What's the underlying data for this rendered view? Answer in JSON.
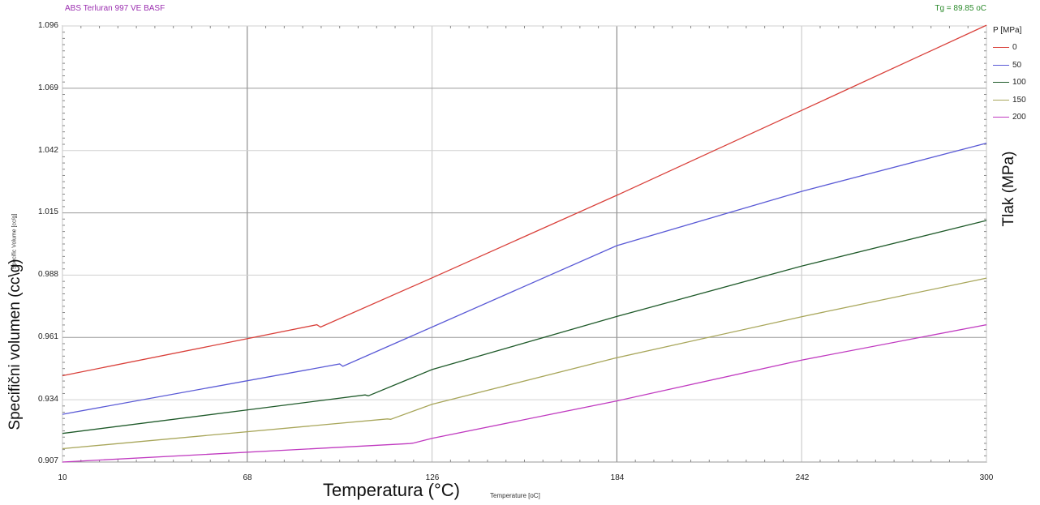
{
  "header": {
    "material": "ABS   Terluran 997 VE   BASF",
    "tg": "Tg =  89.85 oC"
  },
  "axes": {
    "ylabel_small": "Specific Volume [cc/g]",
    "ylabel_big": "Specifični volumen (cc\\g)",
    "xlabel_big": "Temperatura (°C)",
    "xlabel_small": "Temperature [oC]",
    "yticks": [
      "1.096",
      "1.069",
      "1.042",
      "1.015",
      "0.988",
      "0.961",
      "0.934",
      "0.907"
    ],
    "xticks": [
      "10",
      "68",
      "126",
      "184",
      "242",
      "300"
    ]
  },
  "legend": {
    "title": "P [MPa]",
    "right_label": "Tlak (MPa)",
    "items": [
      {
        "label": "0",
        "color": "#d9403a"
      },
      {
        "label": "50",
        "color": "#5a5ad6"
      },
      {
        "label": "100",
        "color": "#1f5a2a"
      },
      {
        "label": "150",
        "color": "#a8a65a"
      },
      {
        "label": "200",
        "color": "#c03ac0"
      }
    ]
  },
  "chart_data": {
    "type": "line",
    "xlim": [
      10,
      300
    ],
    "ylim": [
      0.907,
      1.096
    ],
    "grid": true,
    "legend_position": "right",
    "series": [
      {
        "name": "0",
        "color": "#d9403a",
        "points": [
          [
            10,
            0.9444
          ],
          [
            89.85,
            0.9665
          ],
          [
            91,
            0.9655
          ],
          [
            126,
            0.9868
          ],
          [
            184,
            1.0226
          ],
          [
            242,
            1.0594
          ],
          [
            300,
            1.0963
          ]
        ]
      },
      {
        "name": "50",
        "color": "#5a5ad6",
        "points": [
          [
            10,
            0.9277
          ],
          [
            97,
            0.9495
          ],
          [
            98,
            0.9485
          ],
          [
            126,
            0.9655
          ],
          [
            184,
            1.0008
          ],
          [
            242,
            1.0243
          ],
          [
            300,
            1.0452
          ]
        ]
      },
      {
        "name": "100",
        "color": "#1f5a2a",
        "points": [
          [
            10,
            0.9194
          ],
          [
            105,
            0.9361
          ],
          [
            106,
            0.9357
          ],
          [
            126,
            0.9471
          ],
          [
            184,
            0.9701
          ],
          [
            242,
            0.9919
          ],
          [
            300,
            1.0117
          ]
        ]
      },
      {
        "name": "150",
        "color": "#a8a65a",
        "points": [
          [
            10,
            0.9128
          ],
          [
            112,
            0.9257
          ],
          [
            113,
            0.9255
          ],
          [
            126,
            0.932
          ],
          [
            184,
            0.9522
          ],
          [
            242,
            0.97
          ],
          [
            300,
            0.9867
          ]
        ]
      },
      {
        "name": "200",
        "color": "#c03ac0",
        "points": [
          [
            10,
            0.907
          ],
          [
            119,
            0.915
          ],
          [
            120,
            0.9152
          ],
          [
            126,
            0.9173
          ],
          [
            184,
            0.9335
          ],
          [
            242,
            0.9512
          ],
          [
            300,
            0.9665
          ]
        ]
      }
    ]
  }
}
